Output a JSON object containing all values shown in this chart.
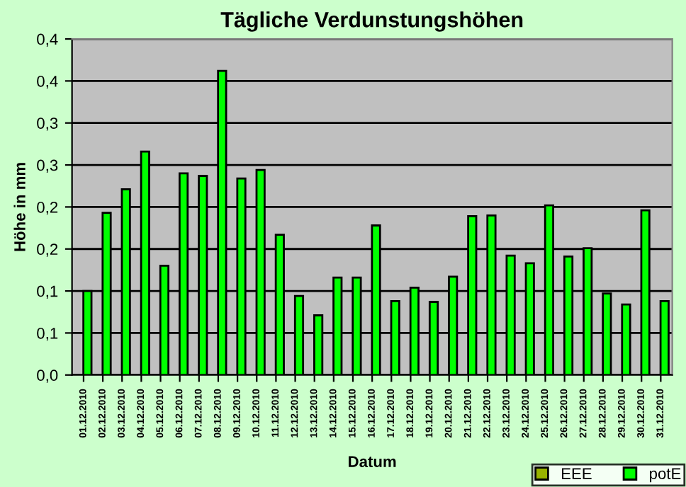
{
  "chart_data": {
    "type": "bar",
    "title": "Tägliche Verdunstungshöhen",
    "xlabel": "Datum",
    "ylabel": "Höhe in mm",
    "categories": [
      "01.12.2010",
      "02.12.2010",
      "03.12.2010",
      "04.12.2010",
      "05.12.2010",
      "06.12.2010",
      "07.12.2010",
      "08.12.2010",
      "09.12.2010",
      "10.12.2010",
      "11.12.2010",
      "12.12.2010",
      "13.12.2010",
      "14.12.2010",
      "15.12.2010",
      "16.12.2010",
      "17.12.2010",
      "18.12.2010",
      "19.12.2010",
      "20.12.2010",
      "21.12.2010",
      "22.12.2010",
      "23.12.2010",
      "24.12.2010",
      "25.12.2010",
      "26.12.2010",
      "27.12.2010",
      "28.12.2010",
      "29.12.2010",
      "30.12.2010",
      "31.12.2010"
    ],
    "series": [
      {
        "name": "EEE",
        "color": "#99b300",
        "values": [
          null,
          null,
          null,
          null,
          null,
          null,
          null,
          null,
          null,
          null,
          null,
          null,
          null,
          null,
          null,
          null,
          null,
          null,
          null,
          null,
          null,
          null,
          null,
          null,
          null,
          null,
          null,
          null,
          null,
          null,
          null
        ]
      },
      {
        "name": "potE",
        "color": "#00ff00",
        "values": [
          0.1,
          0.193,
          0.221,
          0.266,
          0.13,
          0.24,
          0.237,
          0.362,
          0.234,
          0.244,
          0.167,
          0.094,
          0.071,
          0.116,
          0.116,
          0.178,
          0.088,
          0.104,
          0.087,
          0.117,
          0.189,
          0.19,
          0.142,
          0.133,
          0.202,
          0.141,
          0.151,
          0.097,
          0.084,
          0.196,
          0.088
        ]
      }
    ],
    "ylim": [
      0,
      0.4
    ],
    "yticks": [
      {
        "value": 0,
        "label": "0,0"
      },
      {
        "value": 0.05,
        "label": "0,1"
      },
      {
        "value": 0.1,
        "label": "0,1"
      },
      {
        "value": 0.15,
        "label": "0,2"
      },
      {
        "value": 0.2,
        "label": "0,2"
      },
      {
        "value": 0.25,
        "label": "0,3"
      },
      {
        "value": 0.3,
        "label": "0,3"
      },
      {
        "value": 0.35,
        "label": "0,4"
      },
      {
        "value": 0.4,
        "label": "0,4"
      }
    ],
    "grid": "y",
    "legend": "bottom right"
  }
}
